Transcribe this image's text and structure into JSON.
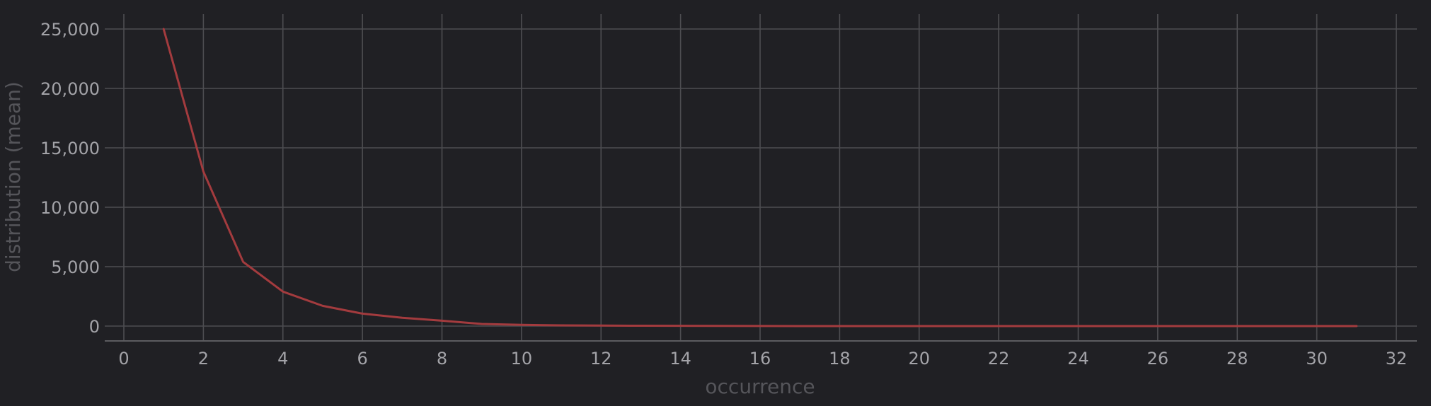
{
  "chart_data": {
    "type": "line",
    "title": "",
    "xlabel": "occurrence",
    "ylabel": "distribution (mean)",
    "xlim": [
      0,
      32
    ],
    "ylim": [
      0,
      25000
    ],
    "x_ticks": [
      0,
      2,
      4,
      6,
      8,
      10,
      12,
      14,
      16,
      18,
      20,
      22,
      24,
      26,
      28,
      30,
      32
    ],
    "y_ticks": [
      0,
      5000,
      10000,
      15000,
      20000,
      25000
    ],
    "y_tick_labels": [
      "0",
      "5,000",
      "10,000",
      "15,000",
      "20,000",
      "25,000"
    ],
    "grid": true,
    "legend": "none",
    "colors": {
      "background": "#202024",
      "grid": "#4d4d51",
      "line": "#a33b3e",
      "tick_text": "#a3a3a8",
      "axis_title": "#55555a"
    },
    "series": [
      {
        "x": [
          1,
          2,
          3,
          4,
          5,
          6,
          7,
          8,
          9,
          10,
          11,
          12,
          13,
          14,
          15,
          16,
          17,
          18,
          19,
          20,
          21,
          22,
          23,
          24,
          25,
          26,
          27,
          28,
          29,
          30,
          31
        ],
        "values": [
          25000,
          13000,
          5400,
          2900,
          1700,
          1050,
          700,
          450,
          180,
          100,
          60,
          40,
          30,
          25,
          10,
          5,
          0,
          0,
          0,
          0,
          0,
          0,
          0,
          0,
          0,
          0,
          0,
          0,
          0,
          0,
          0
        ]
      }
    ]
  }
}
